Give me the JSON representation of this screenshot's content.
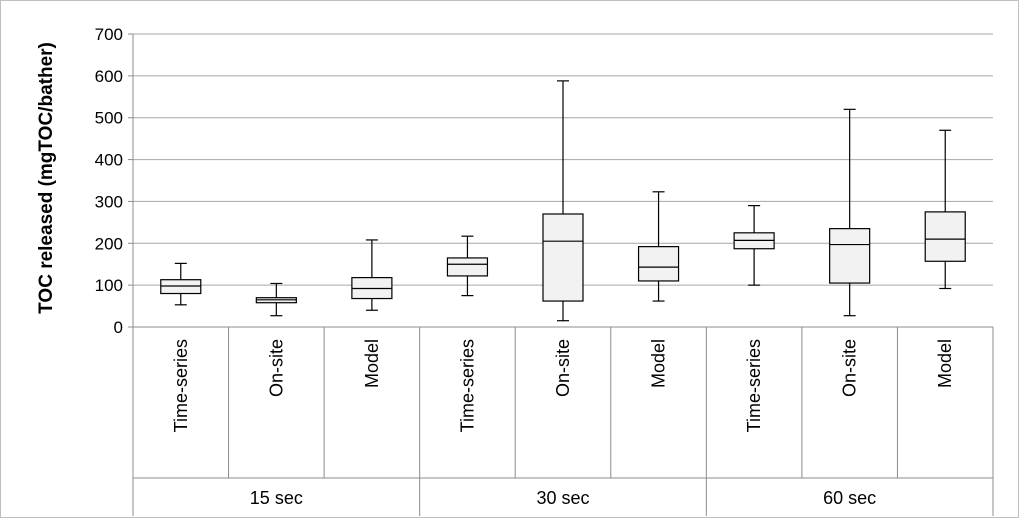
{
  "chart_data": {
    "type": "boxplot",
    "title": "",
    "xlabel": "",
    "ylabel": "TOC released (mgTOC/bather)",
    "ylim": [
      0,
      700
    ],
    "yticks": [
      0,
      100,
      200,
      300,
      400,
      500,
      600,
      700
    ],
    "grid": true,
    "legend": "none",
    "groups": [
      "15 sec",
      "30 sec",
      "60 sec"
    ],
    "categories": [
      "Time-series",
      "On-site",
      "Model",
      "Time-series",
      "On-site",
      "Model",
      "Time-series",
      "On-site",
      "Model"
    ],
    "boxes": [
      {
        "group": "15 sec",
        "category": "Time-series",
        "min": 53,
        "q1": 80,
        "median": 98,
        "q3": 113,
        "max": 152
      },
      {
        "group": "15 sec",
        "category": "On-site",
        "min": 27,
        "q1": 58,
        "median": 65,
        "q3": 70,
        "max": 104
      },
      {
        "group": "15 sec",
        "category": "Model",
        "min": 40,
        "q1": 68,
        "median": 92,
        "q3": 118,
        "max": 208
      },
      {
        "group": "30 sec",
        "category": "Time-series",
        "min": 75,
        "q1": 122,
        "median": 150,
        "q3": 165,
        "max": 217
      },
      {
        "group": "30 sec",
        "category": "On-site",
        "min": 15,
        "q1": 62,
        "median": 205,
        "q3": 270,
        "max": 588
      },
      {
        "group": "30 sec",
        "category": "Model",
        "min": 62,
        "q1": 110,
        "median": 143,
        "q3": 192,
        "max": 323
      },
      {
        "group": "60 sec",
        "category": "Time-series",
        "min": 100,
        "q1": 187,
        "median": 207,
        "q3": 225,
        "max": 290
      },
      {
        "group": "60 sec",
        "category": "On-site",
        "min": 27,
        "q1": 105,
        "median": 197,
        "q3": 235,
        "max": 520
      },
      {
        "group": "60 sec",
        "category": "Model",
        "min": 92,
        "q1": 157,
        "median": 210,
        "q3": 275,
        "max": 470
      }
    ]
  },
  "colors": {
    "box_fill": "#f2f2f2",
    "box_stroke": "#000000",
    "grid": "#a6a6a6",
    "axis": "#8c8c8c"
  }
}
